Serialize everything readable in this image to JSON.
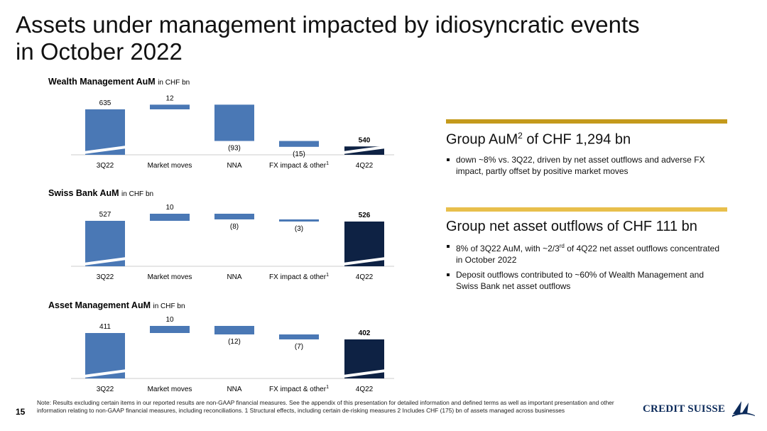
{
  "title_line1": "Assets under management impacted by idiosyncratic events",
  "title_line2": "in October 2022",
  "colors": {
    "bar": "#4a78b5",
    "bar_end": "#0e2244",
    "rule_dark": "#c49a1c",
    "rule_light": "#e8bf4c"
  },
  "chart_data": [
    {
      "type": "bar",
      "title": "Wealth Management AuM",
      "unit": "in CHF bn",
      "categories": [
        "3Q22",
        "Market moves",
        "NNA",
        "FX impact & other",
        "4Q22"
      ],
      "category_sup": [
        "",
        "",
        "",
        "1",
        ""
      ],
      "values": [
        635,
        12,
        -93,
        -15,
        540
      ],
      "labels": [
        "635",
        "12",
        "(93)",
        "(15)",
        "540"
      ],
      "kinds": [
        "total",
        "delta",
        "delta",
        "delta",
        "total"
      ]
    },
    {
      "type": "bar",
      "title": "Swiss Bank AuM",
      "unit": "in CHF bn",
      "categories": [
        "3Q22",
        "Market moves",
        "NNA",
        "FX impact & other",
        "4Q22"
      ],
      "category_sup": [
        "",
        "",
        "",
        "1",
        ""
      ],
      "values": [
        527,
        10,
        -8,
        -3,
        526
      ],
      "labels": [
        "527",
        "10",
        "(8)",
        "(3)",
        "526"
      ],
      "kinds": [
        "total",
        "delta",
        "delta",
        "delta",
        "total"
      ]
    },
    {
      "type": "bar",
      "title": "Asset Management AuM",
      "unit": "in CHF bn",
      "categories": [
        "3Q22",
        "Market moves",
        "NNA",
        "FX impact & other",
        "4Q22"
      ],
      "category_sup": [
        "",
        "",
        "",
        "1",
        ""
      ],
      "values": [
        411,
        10,
        -12,
        -7,
        402
      ],
      "labels": [
        "411",
        "10",
        "(12)",
        "(7)",
        "402"
      ],
      "kinds": [
        "total",
        "delta",
        "delta",
        "delta",
        "total"
      ]
    }
  ],
  "panel1": {
    "heading": "Group AuM",
    "heading_sup": "2",
    "heading_rest": " of CHF 1,294 bn",
    "bullets": [
      "down ~8% vs. 3Q22, driven by net asset outflows and adverse FX impact, partly offset by positive market moves"
    ]
  },
  "panel2": {
    "heading": "Group net asset outflows of CHF 111 bn",
    "bullet1_a": "8% of 3Q22 AuM, with ~2/3",
    "bullet1_sup": "rd",
    "bullet1_b": " of 4Q22 net asset outflows concentrated in October 2022",
    "bullet2": "Deposit outflows contributed to ~60% of Wealth Management and Swiss Bank net asset outflows"
  },
  "page_number": "15",
  "footnote": "Note: Results excluding certain items in our reported results are non-GAAP financial measures. See the appendix of this presentation for detailed information and defined terms as well as important presentation and other information relating to non-GAAP financial measures, including reconciliations.     1 Structural effects, including certain de-risking measures     2 Includes CHF (175) bn of assets managed across businesses",
  "logo_text": "CREDIT SUISSE"
}
